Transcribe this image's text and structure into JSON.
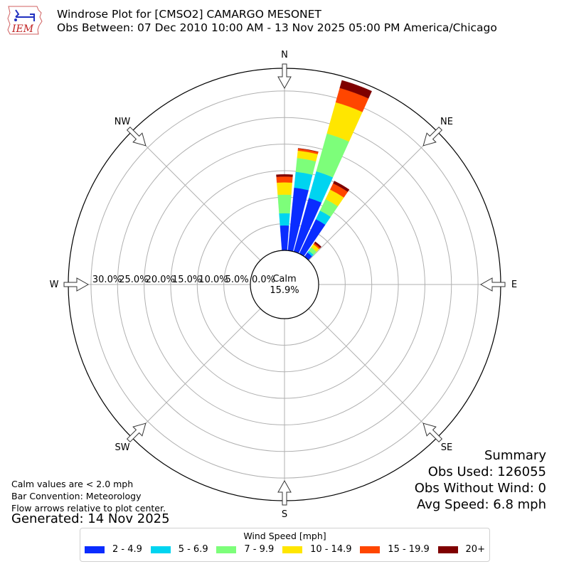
{
  "header": {
    "title_line1": "Windrose Plot for [CMSO2] CAMARGO MESONET",
    "title_line2": "Obs Between: 07 Dec 2010 10:00 AM - 13 Nov 2025 05:00 PM America/Chicago",
    "logo_text": "IEM"
  },
  "notes": {
    "calm": "Calm values are < 2.0 mph",
    "convention": "Bar Convention: Meteorology",
    "arrows": "Flow arrows relative to plot center.",
    "generated": "Generated: 14 Nov 2025"
  },
  "summary": {
    "title": "Summary",
    "obs_used": "Obs Used: 126055",
    "obs_without_wind": "Obs Without Wind: 0",
    "avg_speed": "Avg Speed: 6.8 mph"
  },
  "legend": {
    "title": "Wind Speed [mph]",
    "items": [
      {
        "label": "2 - 4.9",
        "color": "#0a2cff"
      },
      {
        "label": "5 - 6.9",
        "color": "#00d4f0"
      },
      {
        "label": "7 - 9.9",
        "color": "#7dfe7a"
      },
      {
        "label": "10 - 14.9",
        "color": "#ffe600"
      },
      {
        "label": "15 - 19.9",
        "color": "#ff4600"
      },
      {
        "label": "20+",
        "color": "#7f0000"
      }
    ]
  },
  "chart_data": {
    "type": "windrose",
    "title": "Windrose Plot for [CMSO2] CAMARGO MESONET",
    "subtitle": "Obs Between: 07 Dec 2010 10:00 AM - 13 Nov 2025 05:00 PM America/Chicago",
    "calm_label": "Calm",
    "calm_pct": "15.9%",
    "radial_ticks": [
      "0.0%",
      "5.0%",
      "10.0%",
      "15.0%",
      "20.0%",
      "25.0%",
      "30.0%"
    ],
    "radial_values": [
      0,
      5,
      10,
      15,
      20,
      25,
      30
    ],
    "rmax": 34.3,
    "direction_labels": [
      "N",
      "NE",
      "E",
      "SE",
      "S",
      "SW",
      "W",
      "NW"
    ],
    "bin_width_deg": 10,
    "speed_bins": [
      "2 - 4.9",
      "5 - 6.9",
      "7 - 9.9",
      "10 - 14.9",
      "15 - 19.9",
      "20+"
    ],
    "bars": [
      {
        "direction_deg": 0,
        "values": [
          4.7,
          2.3,
          3.5,
          2.3,
          1.1,
          0.4
        ]
      },
      {
        "direction_deg": 10,
        "values": [
          11.9,
          3.0,
          2.6,
          1.4,
          0.4,
          0.05
        ]
      },
      {
        "direction_deg": 20,
        "values": [
          10.5,
          5.2,
          7.4,
          6.1,
          2.8,
          1.5
        ]
      },
      {
        "direction_deg": 30,
        "values": [
          7.2,
          1.8,
          2.4,
          2.0,
          1.3,
          0.5
        ]
      },
      {
        "direction_deg": 40,
        "values": [
          1.0,
          0.4,
          0.8,
          0.7,
          0.3,
          0.3
        ]
      }
    ],
    "legend_title": "Wind Speed [mph]",
    "legend_position": "bottom"
  }
}
